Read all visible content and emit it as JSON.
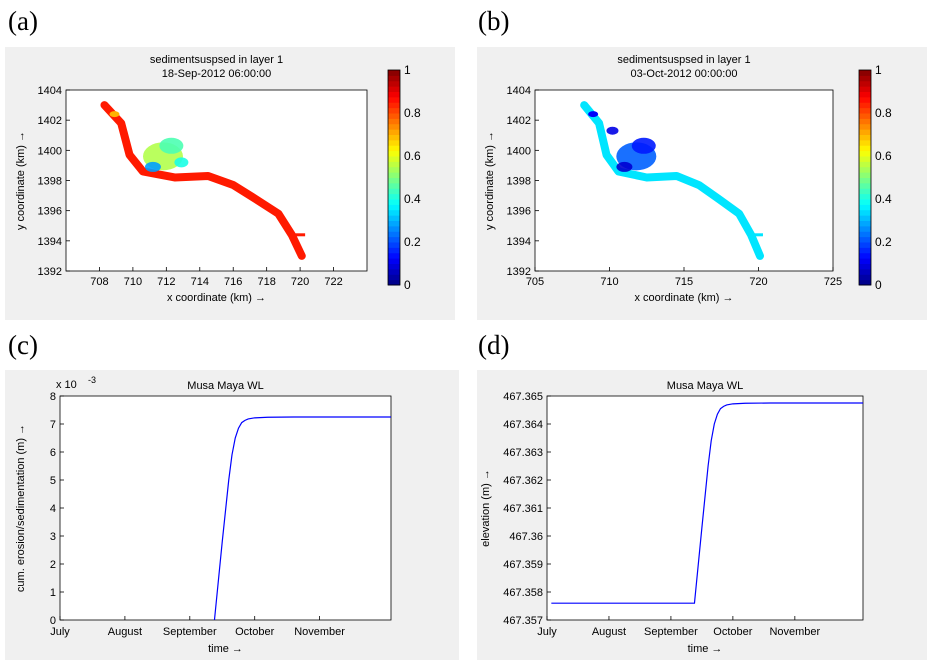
{
  "panels": {
    "a": "(a)",
    "b": "(b)",
    "c": "(c)",
    "d": "(d)"
  },
  "colors": {
    "figure_bg": "#f0f0f0",
    "river_a": "#f05a20",
    "river_b": "#30c8f0",
    "line": "#0000ff"
  },
  "chart_data": [
    {
      "type": "heatmap",
      "panel": "(a)",
      "title": "sedimentsuspsed in layer 1",
      "subtitle": "18-Sep-2012 06:00:00",
      "xlabel": "x coordinate (km) →",
      "ylabel": "y coordinate (km) →",
      "xlim": [
        706,
        724
      ],
      "ylim": [
        1392,
        1404
      ],
      "xticks": [
        "708",
        "710",
        "712",
        "714",
        "716",
        "718",
        "720",
        "722"
      ],
      "yticks": [
        "1392",
        "1394",
        "1396",
        "1398",
        "1400",
        "1402",
        "1404"
      ],
      "colorbar": {
        "ticks": [
          "0",
          "0.2",
          "0.4",
          "0.6",
          "0.8",
          "1"
        ],
        "range": [
          0,
          1
        ]
      },
      "path": [
        [
          708.3,
          1403
        ],
        [
          709.3,
          1401.8
        ],
        [
          709.8,
          1399.7
        ],
        [
          710.6,
          1398.6
        ],
        [
          712.5,
          1398.2
        ],
        [
          714.5,
          1398.3
        ],
        [
          716,
          1397.7
        ],
        [
          717.3,
          1396.8
        ],
        [
          718.7,
          1395.8
        ],
        [
          719.5,
          1394.4
        ],
        [
          720.1,
          1393
        ]
      ],
      "dominant_value": 0.85
    },
    {
      "type": "heatmap",
      "panel": "(b)",
      "title": "sedimentsuspsed in layer 1",
      "subtitle": "03-Oct-2012 00:00:00",
      "xlabel": "x coordinate (km) →",
      "ylabel": "y coordinate (km) →",
      "xlim": [
        705,
        725
      ],
      "ylim": [
        1392,
        1404
      ],
      "xticks": [
        "705",
        "710",
        "715",
        "720",
        "725"
      ],
      "yticks": [
        "1392",
        "1394",
        "1396",
        "1398",
        "1400",
        "1402",
        "1404"
      ],
      "colorbar": {
        "ticks": [
          "0",
          "0.2",
          "0.4",
          "0.6",
          "0.8",
          "1"
        ],
        "range": [
          0,
          1
        ]
      },
      "path": [
        [
          708.3,
          1403
        ],
        [
          709.3,
          1401.8
        ],
        [
          709.8,
          1399.7
        ],
        [
          710.6,
          1398.6
        ],
        [
          712.5,
          1398.2
        ],
        [
          714.5,
          1398.3
        ],
        [
          716,
          1397.7
        ],
        [
          717.3,
          1396.8
        ],
        [
          718.7,
          1395.8
        ],
        [
          719.5,
          1394.4
        ],
        [
          720.1,
          1393
        ]
      ],
      "dominant_value": 0.35
    },
    {
      "type": "line",
      "panel": "(c)",
      "title": "Musa Maya WL",
      "xlabel": "time →",
      "ylabel": "cum. erosion/sedimentation (m) →",
      "exponent": "x 10",
      "exponent_power": "-3",
      "xticks": [
        "July",
        "August",
        "September",
        "October",
        "November"
      ],
      "yticks": [
        "0",
        "1",
        "2",
        "3",
        "4",
        "5",
        "6",
        "7",
        "8"
      ],
      "xlim": [
        0,
        5.1
      ],
      "ylim": [
        0,
        8
      ],
      "x": [
        2.38,
        2.5,
        2.6,
        2.65,
        2.7,
        2.75,
        2.8,
        2.85,
        2.9,
        3.0,
        3.2,
        3.6,
        5.1
      ],
      "y": [
        0,
        2.8,
        5.0,
        5.9,
        6.5,
        6.85,
        7.05,
        7.13,
        7.18,
        7.22,
        7.24,
        7.25,
        7.25
      ]
    },
    {
      "type": "line",
      "panel": "(d)",
      "title": "Musa Maya WL",
      "xlabel": "time →",
      "ylabel": "elevation (m) →",
      "xticks": [
        "July",
        "August",
        "September",
        "October",
        "November"
      ],
      "yticks": [
        "467.357",
        "467.358",
        "467.359",
        "467.36",
        "467.361",
        "467.362",
        "467.363",
        "467.364",
        "467.365"
      ],
      "xlim": [
        0,
        5.1
      ],
      "ylim": [
        467.357,
        467.365
      ],
      "x": [
        0.07,
        2.38,
        2.5,
        2.6,
        2.65,
        2.7,
        2.75,
        2.8,
        2.85,
        2.9,
        3.0,
        3.2,
        3.6,
        5.1
      ],
      "y": [
        467.3576,
        467.3576,
        467.3603,
        467.3625,
        467.3634,
        467.364,
        467.36435,
        467.36455,
        467.36463,
        467.36468,
        467.36472,
        467.36474,
        467.36475,
        467.36475
      ]
    }
  ]
}
